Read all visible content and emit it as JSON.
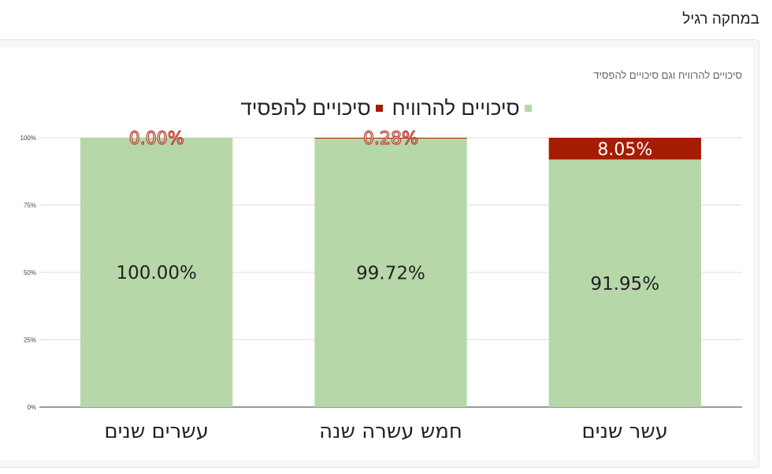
{
  "page": {
    "heading": "במחקה רגיל"
  },
  "chart_data": {
    "type": "bar",
    "stacked": true,
    "title": "סיכויים להרוויח וגם סיכויים להפסיד",
    "categories": [
      "עשר שנים",
      "חמש עשרה שנה",
      "עשרים שנים"
    ],
    "series": [
      {
        "name": "סיכויים להרוויח",
        "color": "#b6d7a8",
        "values": [
          91.95,
          99.72,
          100.0
        ],
        "labels": [
          "91.95%",
          "99.72%",
          "100.00%"
        ]
      },
      {
        "name": "סיכויים להפסיד",
        "color": "#a61c00",
        "values": [
          8.05,
          0.28,
          0.0
        ],
        "labels": [
          "8.05%",
          "0.28%",
          "0.00%"
        ]
      }
    ],
    "yticks": [
      "0%",
      "25%",
      "50%",
      "75%",
      "100%"
    ],
    "ylim": [
      0,
      100
    ],
    "grid": true,
    "legend_position": "top",
    "direction": "rtl"
  }
}
